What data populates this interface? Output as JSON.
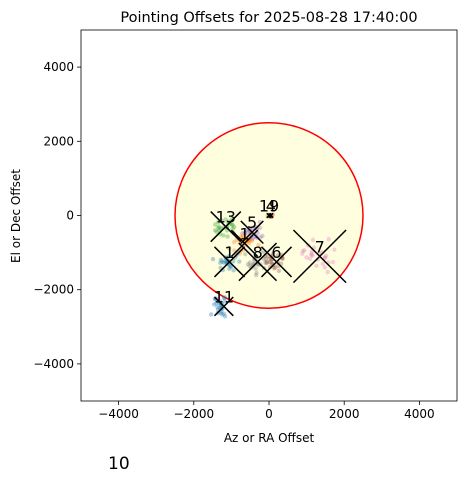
{
  "chart_data": {
    "type": "scatter",
    "title": "Pointing Offsets for 2025-08-28 17:40:00",
    "xlabel": "Az or RA Offset",
    "ylabel": "El or Dec Offset",
    "xlim": [
      -5000,
      5000
    ],
    "ylim": [
      -5000,
      5000
    ],
    "xticks": [
      -4000,
      -2000,
      0,
      2000,
      4000
    ],
    "yticks": [
      -4000,
      -2000,
      0,
      2000,
      4000
    ],
    "xtick_labels": [
      "−4000",
      "−2000",
      "0",
      "2000",
      "4000"
    ],
    "ytick_labels": [
      "−4000",
      "−2000",
      "0",
      "2000",
      "4000"
    ],
    "circle": {
      "center": [
        0,
        0
      ],
      "radius": 2500,
      "edge_color": "#ff0000",
      "fill_color": "#ffffe0"
    },
    "groups": [
      {
        "label": "1",
        "color": "#1f77b4",
        "center": [
          -1050,
          -1250
        ],
        "marker_size": 400
      },
      {
        "label": "11",
        "color": "#1f77b4",
        "center": [
          -1200,
          -2450
        ],
        "marker_size": 250
      },
      {
        "label": "13",
        "color": "#2ca02c",
        "center": [
          -1150,
          -300
        ],
        "marker_size": 400
      },
      {
        "label": "5",
        "color": "#9467bd",
        "center": [
          -450,
          -450
        ],
        "marker_size": 300
      },
      {
        "label": "1",
        "color": "#ff7f0e",
        "center": [
          -650,
          -750
        ],
        "marker_size": 350
      },
      {
        "label": "8",
        "color": "#7f7f7f",
        "center": [
          -300,
          -1250
        ],
        "marker_size": 500
      },
      {
        "label": "6",
        "color": "#8c564b",
        "center": [
          200,
          -1250
        ],
        "marker_size": 400
      },
      {
        "label": "7",
        "color": "#e377c2",
        "center": [
          1350,
          -1100
        ],
        "marker_size": 700
      },
      {
        "label": "19",
        "color": "#bcbd22",
        "center": [
          0,
          0
        ],
        "marker_size": 60
      },
      {
        "label": "4",
        "color": "#d62728",
        "center": [
          50,
          0
        ],
        "marker_size": 60
      }
    ],
    "grid": false,
    "legend": "none"
  },
  "footer": {
    "label": "10"
  }
}
